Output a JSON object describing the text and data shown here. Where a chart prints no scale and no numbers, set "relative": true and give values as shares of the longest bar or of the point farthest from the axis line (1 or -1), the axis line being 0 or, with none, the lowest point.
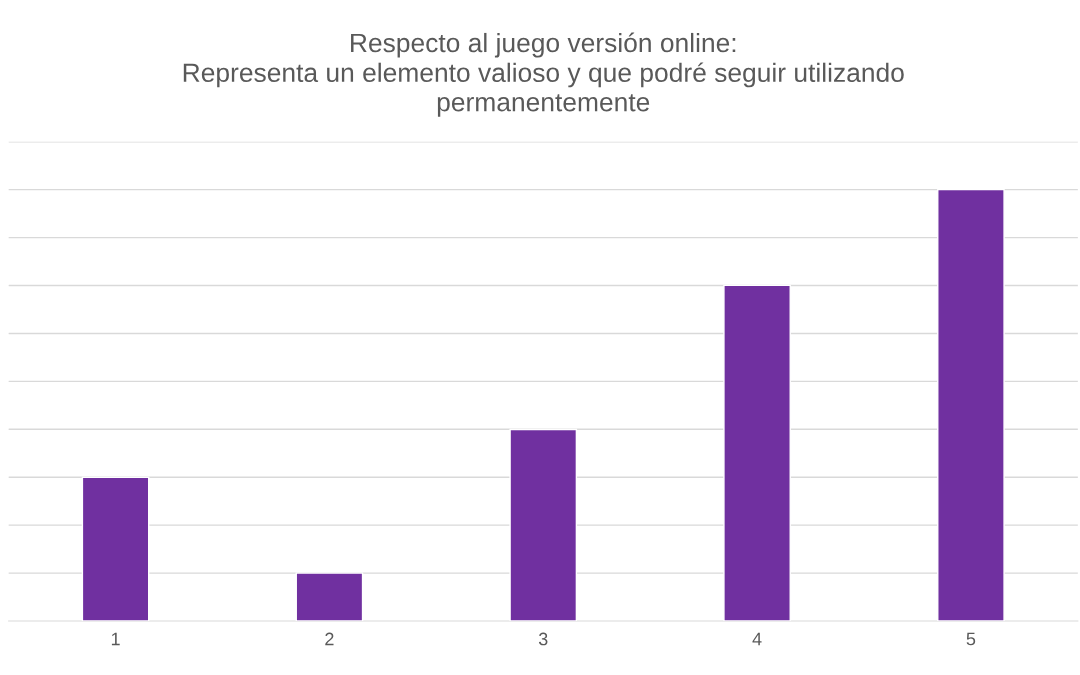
{
  "chart_data": {
    "type": "bar",
    "title": "Respecto al juego versión online:\nRepresenta un elemento valioso y que podré seguir utilizando\npermanentemente",
    "categories": [
      "1",
      "2",
      "3",
      "4",
      "5"
    ],
    "values": [
      0.333,
      0.111,
      0.444,
      0.778,
      1
    ],
    "color": "#7030a0",
    "relative": true,
    "grid": "y"
  }
}
